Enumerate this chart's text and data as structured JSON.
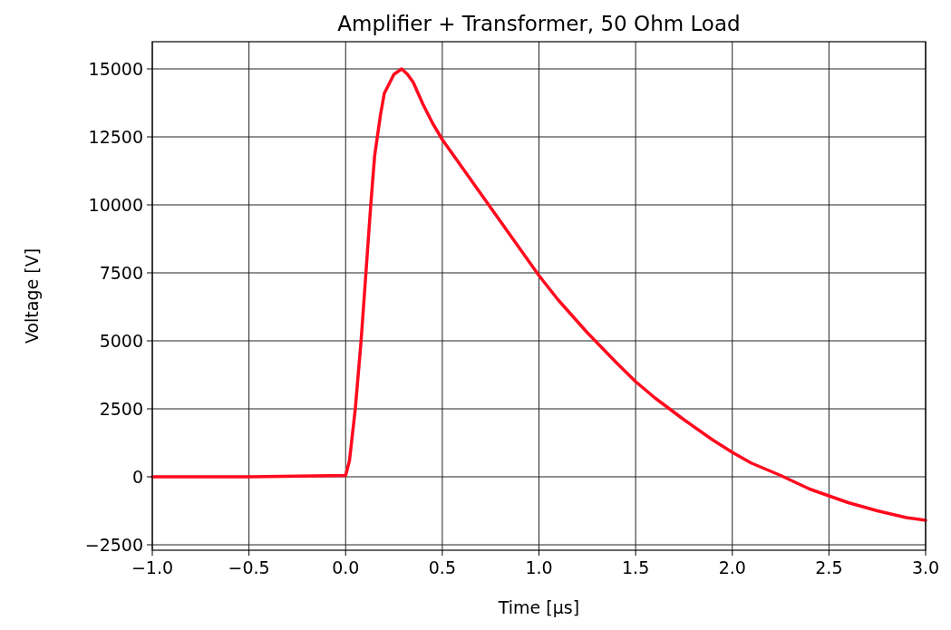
{
  "chart_data": {
    "type": "line",
    "title": "Amplifier + Transformer, 50 Ohm Load",
    "xlabel": "Time [μs]",
    "ylabel": "Voltage [V]",
    "series": [
      {
        "color": "#ff0a1e",
        "x": [
          -1,
          -0.5,
          0,
          0.02,
          0.05,
          0.08,
          0.1,
          0.13,
          0.15,
          0.18,
          0.2,
          0.25,
          0.29,
          0.32,
          0.35,
          0.4,
          0.45,
          0.5,
          0.6,
          0.75,
          0.9,
          1.0,
          1.1,
          1.25,
          1.4,
          1.5,
          1.6,
          1.75,
          1.9,
          2.0,
          2.1,
          2.25,
          2.4,
          2.5,
          2.6,
          2.75,
          2.9,
          3.0
        ],
        "values": [
          0,
          0,
          50,
          600,
          2500,
          5000,
          7000,
          10000,
          11800,
          13300,
          14100,
          14800,
          15000,
          14800,
          14500,
          13700,
          13000,
          12400,
          11400,
          9900,
          8400,
          7400,
          6500,
          5300,
          4200,
          3500,
          2900,
          2100,
          1350,
          900,
          500,
          50,
          -450,
          -700,
          -950,
          -1250,
          -1500,
          -1600
        ]
      }
    ],
    "xlim": [
      -1,
      3
    ],
    "ylim": [
      -2700,
      16000
    ],
    "xticks": [
      {
        "value": -1,
        "label": "−1.0"
      },
      {
        "value": -0.5,
        "label": "−0.5"
      },
      {
        "value": 0,
        "label": "0.0"
      },
      {
        "value": 0.5,
        "label": "0.5"
      },
      {
        "value": 1,
        "label": "1.0"
      },
      {
        "value": 1.5,
        "label": "1.5"
      },
      {
        "value": 2,
        "label": "2.0"
      },
      {
        "value": 2.5,
        "label": "2.5"
      },
      {
        "value": 3,
        "label": "3.0"
      }
    ],
    "yticks": [
      {
        "value": -2500,
        "label": "−2500"
      },
      0,
      2500,
      5000,
      7500,
      10000,
      12500,
      15000
    ],
    "grid": true,
    "line_style": "solid",
    "marker": "none"
  }
}
